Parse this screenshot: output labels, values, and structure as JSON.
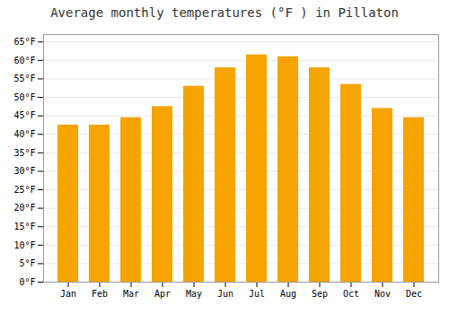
{
  "chart_data": {
    "type": "bar",
    "title": "Average monthly temperatures (°F ) in Pillaton",
    "categories": [
      "Jan",
      "Feb",
      "Mar",
      "Apr",
      "May",
      "Jun",
      "Jul",
      "Aug",
      "Sep",
      "Oct",
      "Nov",
      "Dec"
    ],
    "values": [
      42.5,
      42.5,
      44.5,
      47.5,
      53.0,
      58.0,
      61.5,
      61.0,
      58.0,
      53.5,
      47.0,
      44.5
    ],
    "color": "#F5A400",
    "ylim": [
      0,
      67
    ],
    "yticks": [
      {
        "value": 0,
        "label": "0°F"
      },
      {
        "value": 5,
        "label": "5°F"
      },
      {
        "value": 10,
        "label": "10°F"
      },
      {
        "value": 15,
        "label": "15°F"
      },
      {
        "value": 20,
        "label": "20°F"
      },
      {
        "value": 25,
        "label": "25°F"
      },
      {
        "value": 30,
        "label": "30°F"
      },
      {
        "value": 35,
        "label": "35°F"
      },
      {
        "value": 40,
        "label": "40°F"
      },
      {
        "value": 45,
        "label": "45°F"
      },
      {
        "value": 50,
        "label": "50°F"
      },
      {
        "value": 55,
        "label": "55°F"
      },
      {
        "value": 60,
        "label": "60°F"
      },
      {
        "value": 65,
        "label": "65°F"
      }
    ],
    "grid": true
  }
}
